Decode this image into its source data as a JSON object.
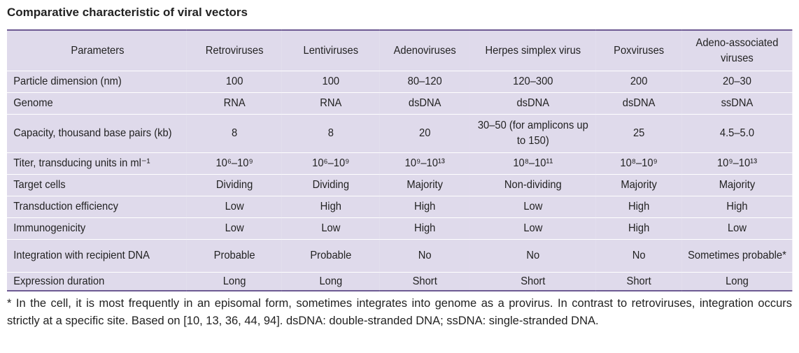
{
  "title": "Comparative characteristic of viral vectors",
  "table": {
    "header": [
      "Parameters",
      "Retroviruses",
      "Lentiviruses",
      "Adenoviruses",
      "Herpes simplex virus",
      "Poxviruses",
      "Adeno-associated viruses"
    ],
    "rows": [
      [
        "Particle dimension (nm)",
        "100",
        "100",
        "80–120",
        "120–300",
        "200",
        "20–30"
      ],
      [
        "Genome",
        "RNA",
        "RNA",
        "dsDNA",
        "dsDNA",
        "dsDNA",
        "ssDNA"
      ],
      [
        "Capacity, thousand base pairs (kb)",
        "8",
        "8",
        "20",
        "30–50 (for amplicons up to 150)",
        "25",
        "4.5–5.0"
      ],
      [
        "Titer, transducing units in ml⁻¹",
        "10⁶–10⁹",
        "10⁶–10⁹",
        "10⁹–10¹³",
        "10⁸–10¹¹",
        "10⁸–10⁹",
        "10⁹–10¹³"
      ],
      [
        "Target cells",
        "Dividing",
        "Dividing",
        "Majority",
        "Non-dividing",
        "Majority",
        "Majority"
      ],
      [
        "Transduction efficiency",
        "Low",
        "High",
        "High",
        "Low",
        "High",
        "High"
      ],
      [
        "Immunogenicity",
        "Low",
        "Low",
        "High",
        "Low",
        "High",
        "Low"
      ],
      [
        "Integration with recipient DNA",
        "Probable",
        "Probable",
        "No",
        "No",
        "No",
        "Sometimes probable*"
      ],
      [
        "Expression duration",
        "Long",
        "Long",
        "Short",
        "Short",
        "Short",
        "Long"
      ]
    ]
  },
  "footnote": "* In the cell, it is most frequently in an episomal form, sometimes integrates into genome as a provirus. In contrast to retroviruses, integration occurs strictly at a specific site. Based on [10, 13, 36, 44, 94]. dsDNA: double-stranded DNA; ssDNA: single-stranded DNA."
}
